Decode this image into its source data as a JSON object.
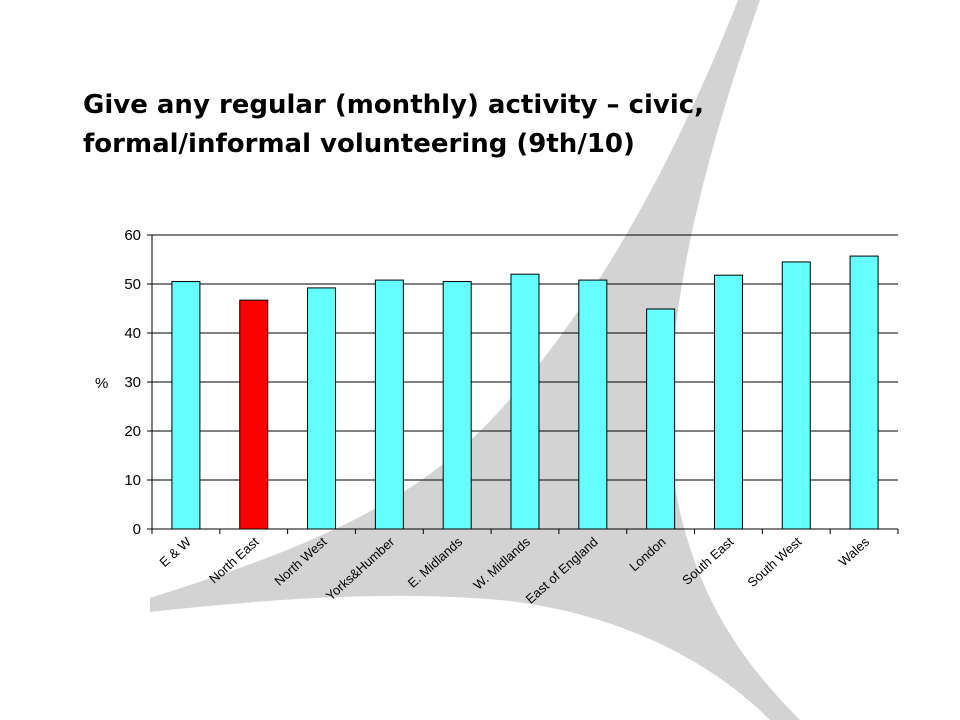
{
  "slide": {
    "title_line1": "Give any regular (monthly) activity – civic,",
    "title_line2": "formal/informal volunteering (9th/10)"
  },
  "chart_data": {
    "type": "bar",
    "title": "Give any regular (monthly) activity – civic, formal/informal volunteering (9th/10)",
    "ylabel": "%",
    "xlabel": "",
    "ylim": [
      0,
      60
    ],
    "yticks": [
      0,
      10,
      20,
      30,
      40,
      50,
      60
    ],
    "grid": true,
    "categories": [
      "E & W",
      "North East",
      "North West",
      "Yorks&Humber",
      "E. Midlands",
      "W. Midlands",
      "East of England",
      "London",
      "South East",
      "South West",
      "Wales"
    ],
    "values": [
      50.5,
      46.7,
      49.2,
      50.8,
      50.5,
      52.0,
      50.8,
      44.9,
      51.8,
      54.5,
      55.7
    ],
    "bar_color": "#66FFFF",
    "highlight_color": "#FF0000",
    "highlight_category": "North East"
  }
}
